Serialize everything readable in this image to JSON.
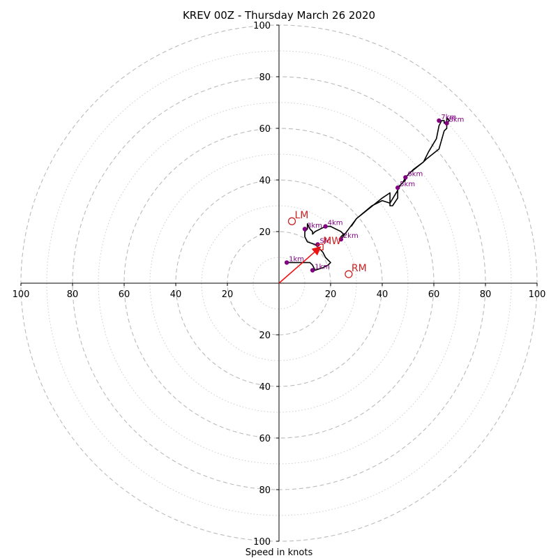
{
  "chart_data": {
    "type": "hodograph",
    "title": "KREV 00Z - Thursday March 26 2020",
    "xlabel": "Speed in knots",
    "xlim": [
      -100,
      100
    ],
    "ylim": [
      -100,
      100
    ],
    "ring_major": [
      20,
      40,
      60,
      80,
      100
    ],
    "ring_minor": [
      10,
      30,
      50,
      70,
      90
    ],
    "x_tick_labels": [
      {
        "value": -100,
        "label": "100"
      },
      {
        "value": -80,
        "label": "80"
      },
      {
        "value": -60,
        "label": "60"
      },
      {
        "value": -40,
        "label": "40"
      },
      {
        "value": -20,
        "label": "20"
      },
      {
        "value": 20,
        "label": "20"
      },
      {
        "value": 40,
        "label": "40"
      },
      {
        "value": 60,
        "label": "60"
      },
      {
        "value": 80,
        "label": "80"
      },
      {
        "value": 100,
        "label": "100"
      }
    ],
    "y_tick_labels": [
      {
        "value": 100,
        "label": "100"
      },
      {
        "value": 80,
        "label": "80"
      },
      {
        "value": 60,
        "label": "60"
      },
      {
        "value": 40,
        "label": "40"
      },
      {
        "value": 20,
        "label": "20"
      },
      {
        "value": -20,
        "label": "20"
      },
      {
        "value": -40,
        "label": "40"
      },
      {
        "value": -60,
        "label": "60"
      },
      {
        "value": -80,
        "label": "80"
      },
      {
        "value": -100,
        "label": "100"
      }
    ],
    "grid": true,
    "colors": {
      "trace": "#000000",
      "marker": "#800080",
      "storm_motion": "#cc2222",
      "mean_wind_vector": "#ee1111",
      "grid": "#bbbbbb"
    },
    "hodograph_trace": [
      [
        3,
        8
      ],
      [
        8,
        8
      ],
      [
        12,
        8
      ],
      [
        13,
        7
      ],
      [
        14,
        5
      ],
      [
        17,
        6
      ],
      [
        19,
        7
      ],
      [
        20,
        8
      ],
      [
        18,
        10
      ],
      [
        17,
        12
      ],
      [
        15,
        14
      ],
      [
        14,
        15
      ],
      [
        11,
        16
      ],
      [
        10,
        18
      ],
      [
        10,
        20
      ],
      [
        11,
        21
      ],
      [
        11,
        23
      ],
      [
        12,
        21
      ],
      [
        13,
        20
      ],
      [
        13,
        19
      ],
      [
        14,
        20
      ],
      [
        16,
        21
      ],
      [
        18,
        22
      ],
      [
        20,
        22
      ],
      [
        22,
        21
      ],
      [
        24,
        20
      ],
      [
        25,
        19
      ],
      [
        24,
        18
      ],
      [
        24,
        17
      ],
      [
        27,
        21
      ],
      [
        30,
        25
      ],
      [
        35,
        29
      ],
      [
        40,
        33
      ],
      [
        43,
        35
      ],
      [
        43,
        33
      ],
      [
        43,
        30
      ],
      [
        44,
        30
      ],
      [
        46,
        33
      ],
      [
        46,
        37
      ],
      [
        48,
        39
      ],
      [
        49,
        41
      ],
      [
        52,
        44
      ],
      [
        56,
        47
      ],
      [
        58,
        51
      ],
      [
        61,
        56
      ],
      [
        62,
        61
      ],
      [
        63,
        63
      ],
      [
        64,
        63
      ],
      [
        64,
        62
      ],
      [
        65,
        62
      ],
      [
        65,
        64
      ],
      [
        66,
        63
      ],
      [
        65,
        62
      ],
      [
        65,
        60
      ],
      [
        64,
        59
      ],
      [
        62,
        52
      ],
      [
        57,
        48
      ],
      [
        56,
        47
      ],
      [
        51,
        43
      ],
      [
        49,
        41
      ],
      [
        49,
        40
      ],
      [
        47,
        38
      ],
      [
        46,
        36
      ],
      [
        43,
        31
      ],
      [
        40,
        32
      ],
      [
        36,
        30
      ],
      [
        30,
        25
      ],
      [
        28,
        22
      ]
    ],
    "height_markers": [
      {
        "label": "Sfc",
        "u": 15,
        "v": 15
      },
      {
        "label": "1km",
        "u": 3,
        "v": 8
      },
      {
        "label": "1km",
        "u": 13,
        "v": 5
      },
      {
        "label": "2km",
        "u": 24,
        "v": 17
      },
      {
        "label": "3km",
        "u": 10,
        "v": 21
      },
      {
        "label": "4km",
        "u": 18,
        "v": 22
      },
      {
        "label": "5km",
        "u": 46,
        "v": 37
      },
      {
        "label": "6km",
        "u": 49,
        "v": 41
      },
      {
        "label": "7km",
        "u": 62,
        "v": 63
      },
      {
        "label": "8km",
        "u": 65,
        "v": 62
      }
    ],
    "storm_motion": [
      {
        "label": "LM",
        "u": 5,
        "v": 24
      },
      {
        "label": "RM",
        "u": 27,
        "v": 3.5
      },
      {
        "label": "MW",
        "u": 16,
        "v": 14
      }
    ],
    "mean_wind_vector": {
      "u": 16,
      "v": 14
    }
  }
}
